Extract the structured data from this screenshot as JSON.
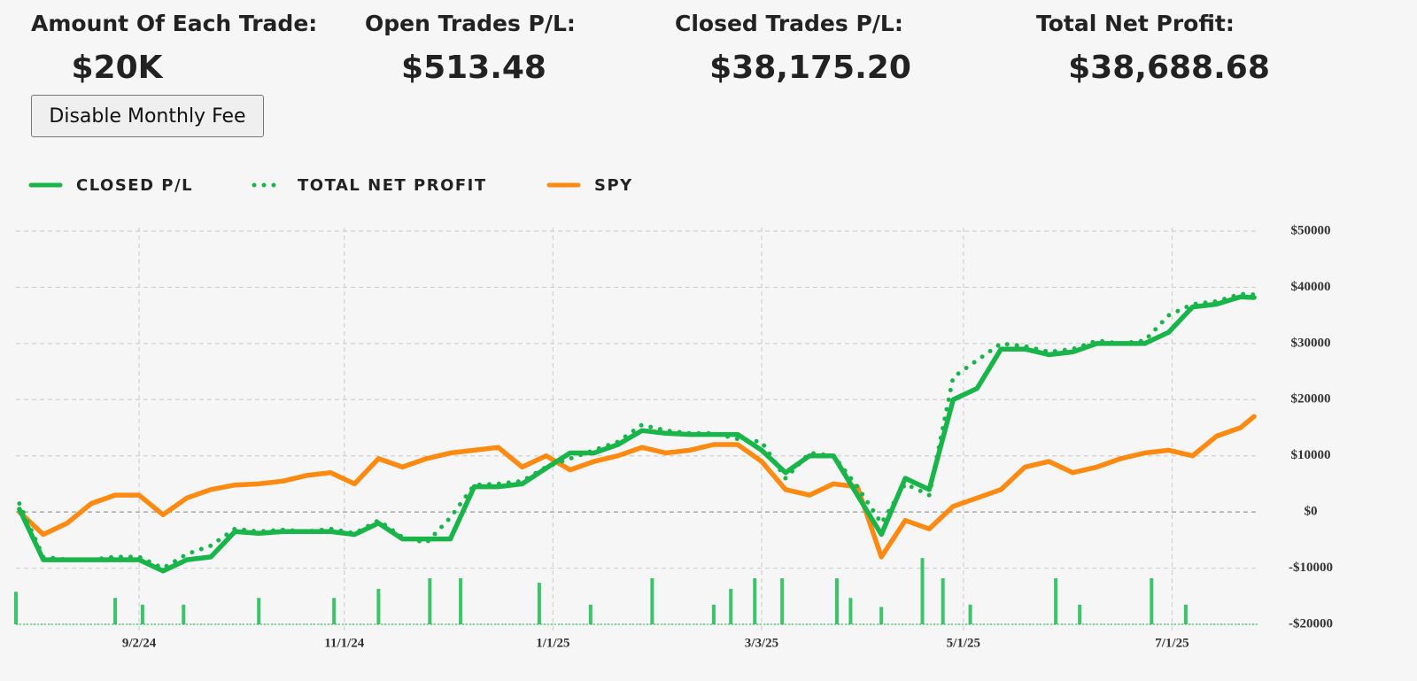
{
  "header": {
    "stats": [
      {
        "label": "Amount Of Each Trade:",
        "value": "$20K"
      },
      {
        "label": "Open Trades P/L:",
        "value": "$513.48"
      },
      {
        "label": "Closed Trades P/L:",
        "value": "$38,175.20"
      },
      {
        "label": "Total Net Profit:",
        "value": "$38,688.68"
      }
    ],
    "button": "Disable Monthly Fee"
  },
  "chart_data": {
    "type": "line",
    "x": [
      "7/29/24",
      "8/5/24",
      "8/12/24",
      "8/19/24",
      "8/26/24",
      "9/2/24",
      "9/9/24",
      "9/16/24",
      "9/23/24",
      "9/30/24",
      "10/7/24",
      "10/14/24",
      "10/21/24",
      "10/28/24",
      "11/4/24",
      "11/11/24",
      "11/18/24",
      "11/25/24",
      "12/2/24",
      "12/9/24",
      "12/16/24",
      "12/23/24",
      "12/30/24",
      "1/6/25",
      "1/13/25",
      "1/20/25",
      "1/27/25",
      "2/3/25",
      "2/10/25",
      "2/17/25",
      "2/24/25",
      "3/3/25",
      "3/10/25",
      "3/17/25",
      "3/24/25",
      "3/31/25",
      "4/7/25",
      "4/14/25",
      "4/21/25",
      "4/28/25",
      "5/5/25",
      "5/12/25",
      "5/19/25",
      "5/26/25",
      "6/2/25",
      "6/9/25",
      "6/16/25",
      "6/23/25",
      "6/30/25",
      "7/7/25",
      "7/14/25",
      "7/21/25",
      "7/25/25"
    ],
    "series": [
      {
        "name": "CLOSED P/L",
        "color": "#19b54a",
        "style": "solid",
        "values": [
          500,
          -8500,
          -8500,
          -8500,
          -8500,
          -8500,
          -10500,
          -8500,
          -8000,
          -3500,
          -3800,
          -3500,
          -3500,
          -3500,
          -4000,
          -2000,
          -4800,
          -4800,
          -4800,
          4500,
          4500,
          5000,
          7800,
          10500,
          10500,
          12000,
          14500,
          14000,
          13800,
          13800,
          13800,
          11000,
          7000,
          10000,
          10000,
          3000,
          -4000,
          6000,
          4000,
          20000,
          22000,
          29000,
          29000,
          28000,
          28500,
          30000,
          30000,
          30000,
          32000,
          36500,
          37000,
          38300,
          38175
        ]
      },
      {
        "name": "TOTAL NET PROFIT",
        "color": "#19b54a",
        "style": "dotted",
        "values": [
          1500,
          -8000,
          -8500,
          -8500,
          -8000,
          -8000,
          -10000,
          -7500,
          -6000,
          -3000,
          -3500,
          -3200,
          -3500,
          -3000,
          -3800,
          -1500,
          -4500,
          -5500,
          -1000,
          4800,
          5000,
          5500,
          8000,
          9500,
          11000,
          12500,
          15500,
          14500,
          14000,
          14000,
          13000,
          12500,
          6000,
          10500,
          10000,
          4500,
          -2000,
          5000,
          3000,
          24000,
          27000,
          30000,
          29500,
          28500,
          29000,
          30500,
          30000,
          30500,
          35000,
          37000,
          37500,
          38800,
          38689
        ]
      },
      {
        "name": "SPY",
        "color": "#ff8a12",
        "style": "solid",
        "values": [
          0,
          -4000,
          -2000,
          1500,
          3000,
          3000,
          -500,
          2500,
          4000,
          4800,
          5000,
          5500,
          6500,
          7000,
          5000,
          9500,
          8000,
          9500,
          10500,
          11000,
          11500,
          8000,
          10000,
          7500,
          9000,
          10000,
          11500,
          10500,
          11000,
          12000,
          12000,
          9000,
          4000,
          3000,
          5000,
          4500,
          -8000,
          -1500,
          -3000,
          1000,
          2500,
          4000,
          8000,
          9000,
          7000,
          8000,
          9500,
          10500,
          11000,
          10000,
          13500,
          15000,
          17000
        ]
      },
      {
        "type": "bar",
        "color": "#3cc46b",
        "x": [
          "7/28/24",
          "8/26/24",
          "9/3/24",
          "9/15/24",
          "10/7/24",
          "10/29/24",
          "11/11/24",
          "11/26/24",
          "12/5/24",
          "12/28/24",
          "1/12/25",
          "1/30/25",
          "2/17/25",
          "2/22/25",
          "3/1/25",
          "3/9/25",
          "3/25/25",
          "3/29/25",
          "4/7/25",
          "4/19/25",
          "4/25/25",
          "5/3/25",
          "5/28/25",
          "6/4/25",
          "6/25/25",
          "7/5/25"
        ],
        "values": [
          -14200,
          -15300,
          -16500,
          -16500,
          -15300,
          -15300,
          -13700,
          -11800,
          -11800,
          -12600,
          -16500,
          -11800,
          -16500,
          -13700,
          -11800,
          -11800,
          -11800,
          -15300,
          -16900,
          -8200,
          -11800,
          -16500,
          -11800,
          -16500,
          -11800,
          -16500
        ]
      }
    ],
    "xlim": [
      "7/28/24",
      "7/26/25"
    ],
    "xticks": [
      "9/2/24",
      "11/1/24",
      "1/1/25",
      "3/3/25",
      "5/1/25",
      "7/1/25"
    ],
    "ylim": [
      -20000,
      50000
    ],
    "yticks": [
      {
        "value": -20000,
        "label": "-$20000"
      },
      {
        "value": -10000,
        "label": "-$10000"
      },
      {
        "value": 0,
        "label": "$0"
      },
      {
        "value": 10000,
        "label": "$10000"
      },
      {
        "value": 20000,
        "label": "$20000"
      },
      {
        "value": 30000,
        "label": "$30000"
      },
      {
        "value": 40000,
        "label": "$40000"
      },
      {
        "value": 50000,
        "label": "$50000"
      }
    ],
    "grid": true,
    "legend": "top-left"
  }
}
